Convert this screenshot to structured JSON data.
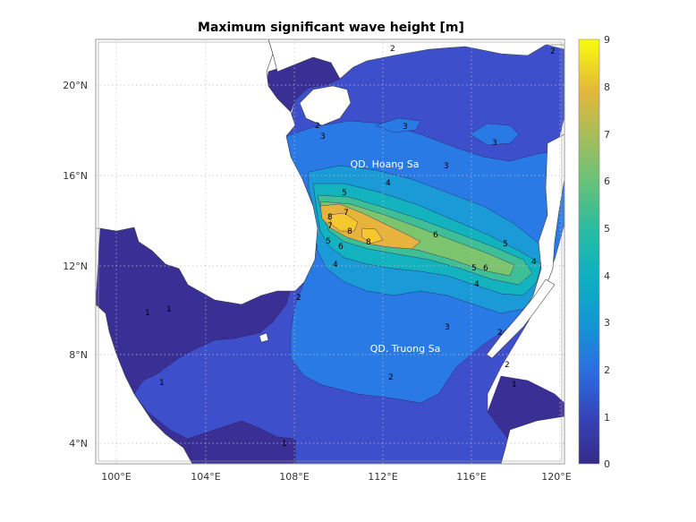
{
  "title": "Maximum significant wave height [m]",
  "x_ticks": [
    "100°E",
    "104°E",
    "108°E",
    "112°E",
    "116°E",
    "120°E"
  ],
  "y_ticks": [
    "4°N",
    "8°N",
    "12°N",
    "16°N",
    "20°N"
  ],
  "colorbar": {
    "ticks": [
      "0",
      "1",
      "2",
      "3",
      "4",
      "5",
      "6",
      "7",
      "8",
      "9"
    ],
    "colormap": "parula",
    "stops": [
      "#352a87",
      "#3544b8",
      "#2b6ee0",
      "#1496d4",
      "#0eafc2",
      "#29bba1",
      "#64c27a",
      "#a6bd5a",
      "#e3b83a",
      "#f9fb0e"
    ]
  },
  "annotations": {
    "hoang_sa": "QD. Hoang Sa",
    "truong_sa": "QD. Truong Sa"
  },
  "contour_labels": {
    "l1a": "1",
    "l1b": "1",
    "l1c": "1",
    "l1d": "1",
    "l1e": "1",
    "l2a": "2",
    "l2b": "2",
    "l2c": "2",
    "l2d": "2",
    "l2e": "2",
    "l2f": "2",
    "l2g": "2",
    "l3a": "3",
    "l3b": "3",
    "l3c": "3",
    "l3d": "3",
    "l3e": "3",
    "l4a": "4",
    "l4b": "4",
    "l4c": "4",
    "l4d": "4",
    "l5a": "5",
    "l5b": "5",
    "l5c": "5",
    "l5d": "5",
    "l6a": "6",
    "l6b": "6",
    "l6c": "6",
    "l7a": "7",
    "l7b": "7",
    "l8a": "8",
    "l8b": "8",
    "l8c": "8"
  },
  "colors": {
    "land": "#ffffff",
    "background": "#ffffff",
    "contour_line": "#1a1a3a",
    "label_text": "#000000",
    "annotation_text": "#ffffff",
    "grid": "#bfbfbf"
  }
}
